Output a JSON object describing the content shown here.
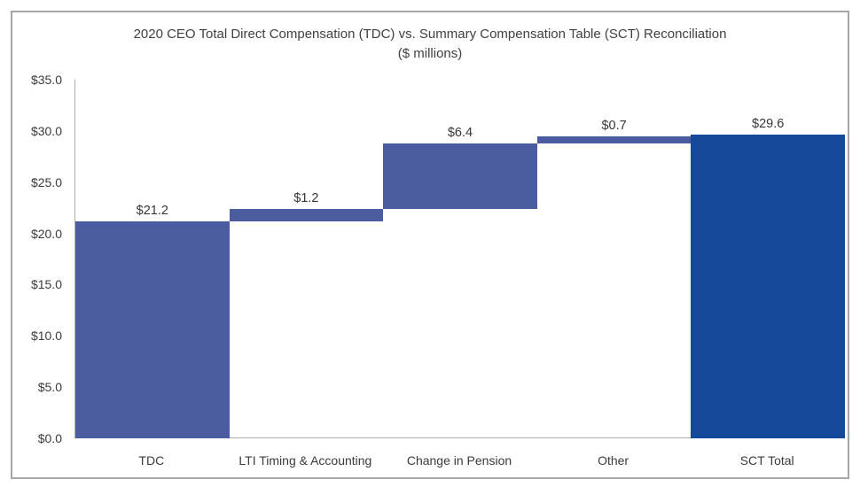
{
  "window": {
    "background": "#ffffff",
    "frame_border_color": "#a6a6a6"
  },
  "chart_data": {
    "type": "bar",
    "subtype": "waterfall",
    "title": "2020 CEO Total Direct Compensation (TDC) vs. Summary Compensation Table (SCT) Reconciliation",
    "subtitle": "($ millions)",
    "categories": [
      "TDC",
      "LTI Timing & Accounting",
      "Change in Pension",
      "Other",
      "SCT Total"
    ],
    "values": [
      21.2,
      1.2,
      6.4,
      0.7,
      29.6
    ],
    "bar_labels": [
      "$21.2",
      "$1.2",
      "$6.4",
      "$0.7",
      "$29.6"
    ],
    "bar_types": [
      "absolute",
      "delta",
      "delta",
      "delta",
      "total"
    ],
    "xlabel": "",
    "ylabel": "",
    "ylim": [
      0,
      35
    ],
    "y_ticks": [
      {
        "value": 0,
        "label": "$0.0"
      },
      {
        "value": 5,
        "label": "$5.0"
      },
      {
        "value": 10,
        "label": "$10.0"
      },
      {
        "value": 15,
        "label": "$15.0"
      },
      {
        "value": 20,
        "label": "$20.0"
      },
      {
        "value": 25,
        "label": "$25.0"
      },
      {
        "value": 30,
        "label": "$30.0"
      },
      {
        "value": 35,
        "label": "$35.0"
      }
    ],
    "grid": "none",
    "legend": "none",
    "colors": {
      "bar_default": "#4b5d9e",
      "bar_total": "#17499b",
      "axis_line": "#acacac",
      "text": "#3b3b3b"
    }
  }
}
